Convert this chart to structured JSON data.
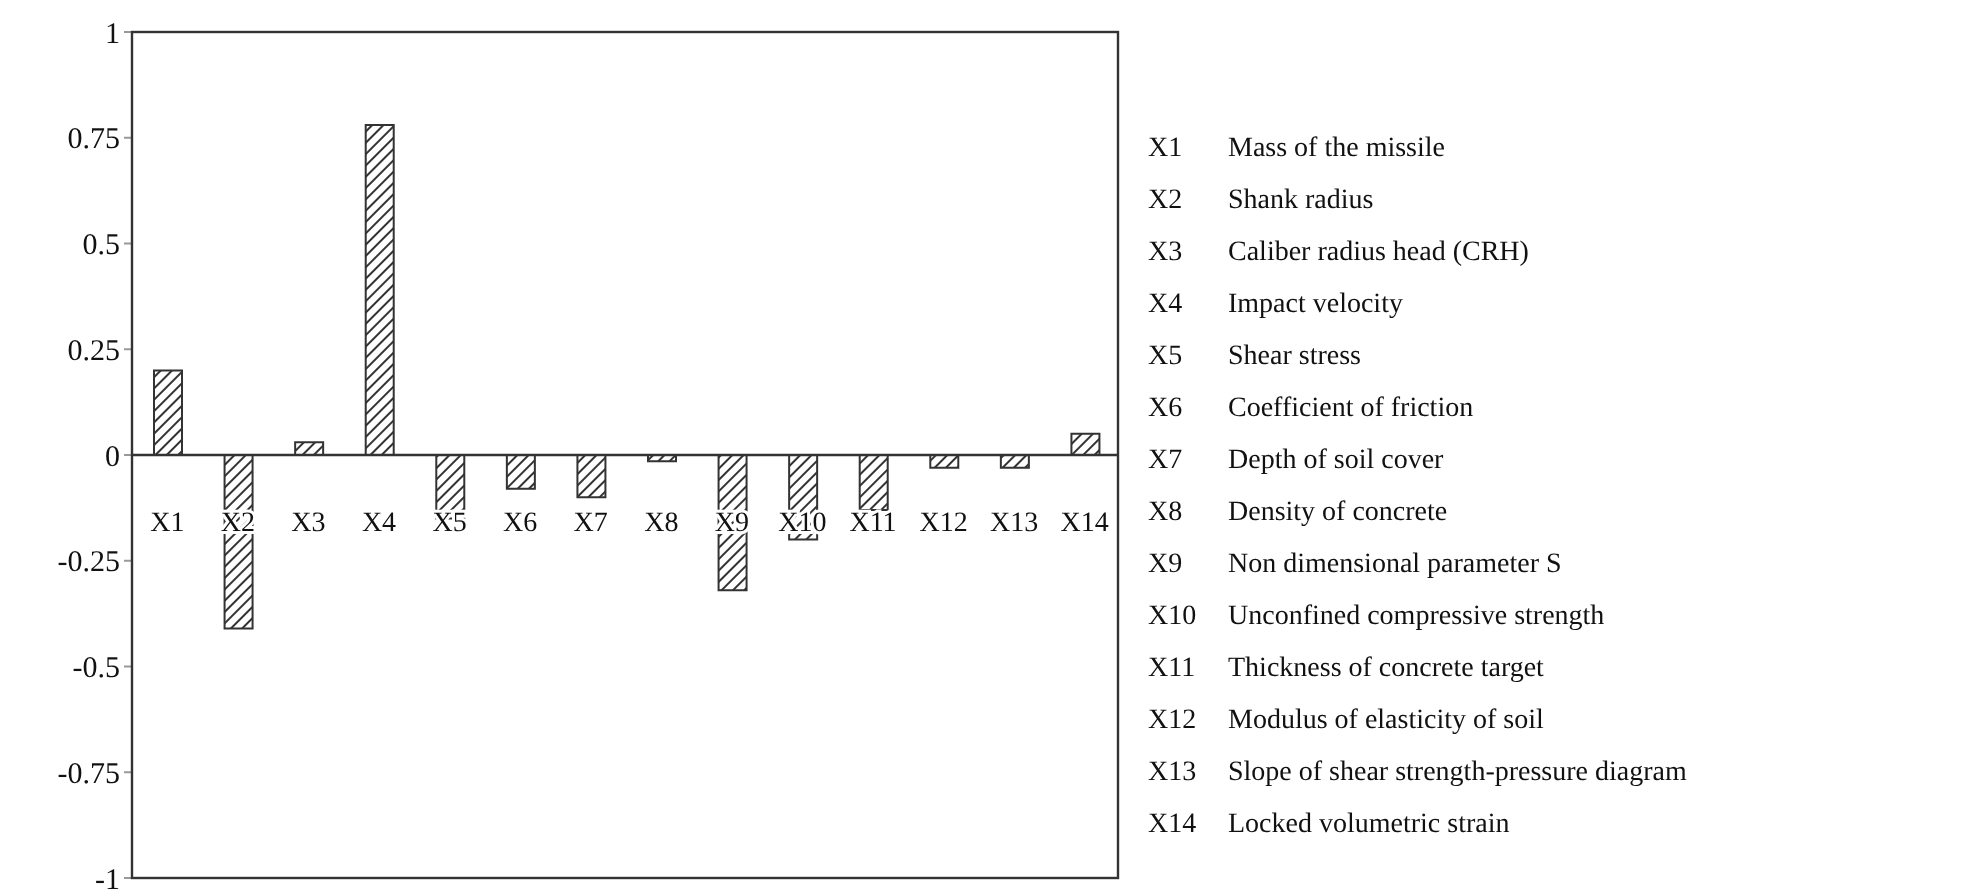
{
  "chart_data": {
    "type": "bar",
    "categories": [
      "X1",
      "X2",
      "X3",
      "X4",
      "X5",
      "X6",
      "X7",
      "X8",
      "X9",
      "X10",
      "X11",
      "X12",
      "X13",
      "X14"
    ],
    "values": [
      0.2,
      -0.41,
      0.03,
      0.78,
      -0.15,
      -0.08,
      -0.1,
      -0.015,
      -0.32,
      -0.2,
      -0.13,
      -0.03,
      -0.03,
      0.05
    ],
    "color": "#333333",
    "ylim": [
      -1,
      1
    ],
    "yticks": [
      -1,
      -0.75,
      -0.5,
      -0.25,
      0,
      0.25,
      0.5,
      0.75,
      1
    ],
    "grid": false,
    "legend": false,
    "annotations": [
      "X1 Mass of the missile",
      "X2 Shank radius",
      "X3 Caliber radius head (CRH)",
      "X4 Impact velocity",
      "X5 Shear stress",
      "X6 Coefficient of friction",
      "X7 Depth of soil cover",
      "X8 Density of concrete",
      "X9 Non dimensional parameter S",
      "X10 Unconfined compressive strength",
      "X11 Thickness of concrete target",
      "X12 Modulus of elasticity of soil",
      "X13 Slope of shear strength-pressure diagram",
      "X14 Locked volumetric strain"
    ]
  }
}
